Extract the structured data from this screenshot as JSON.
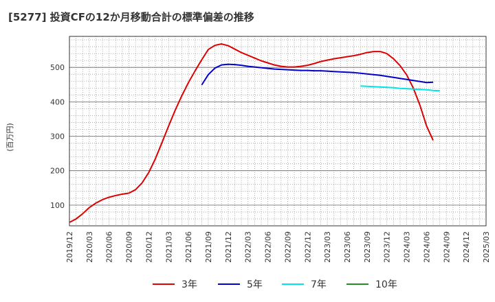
{
  "chart_data": {
    "type": "line",
    "title": "[5277]  投資CFの12か月移動合計の標準偏差の推移",
    "ylabel": "(百万円)",
    "xlabel": "",
    "ylim": [
      40,
      590
    ],
    "yticks": [
      100,
      200,
      300,
      400,
      500
    ],
    "xticks": [
      "2019/12",
      "2020/03",
      "2020/06",
      "2020/09",
      "2020/12",
      "2021/03",
      "2021/06",
      "2021/09",
      "2021/12",
      "2022/03",
      "2022/06",
      "2022/09",
      "2022/12",
      "2023/03",
      "2023/06",
      "2023/09",
      "2023/12",
      "2024/03",
      "2024/06",
      "2024/09",
      "2024/12",
      "2025/03"
    ],
    "grid": true,
    "legend_position": "bottom",
    "series": [
      {
        "name": "3年",
        "color": "#dd0000",
        "points": [
          [
            "2019/12",
            50
          ],
          [
            "2020/01",
            60
          ],
          [
            "2020/02",
            75
          ],
          [
            "2020/03",
            93
          ],
          [
            "2020/04",
            106
          ],
          [
            "2020/05",
            116
          ],
          [
            "2020/06",
            123
          ],
          [
            "2020/07",
            128
          ],
          [
            "2020/08",
            132
          ],
          [
            "2020/09",
            135
          ],
          [
            "2020/10",
            145
          ],
          [
            "2020/11",
            165
          ],
          [
            "2020/12",
            195
          ],
          [
            "2021/01",
            235
          ],
          [
            "2021/02",
            282
          ],
          [
            "2021/03",
            330
          ],
          [
            "2021/04",
            376
          ],
          [
            "2021/05",
            418
          ],
          [
            "2021/06",
            456
          ],
          [
            "2021/07",
            490
          ],
          [
            "2021/08",
            522
          ],
          [
            "2021/09",
            552
          ],
          [
            "2021/10",
            564
          ],
          [
            "2021/11",
            568
          ],
          [
            "2021/12",
            563
          ],
          [
            "2022/01",
            553
          ],
          [
            "2022/02",
            543
          ],
          [
            "2022/03",
            535
          ],
          [
            "2022/04",
            527
          ],
          [
            "2022/05",
            519
          ],
          [
            "2022/06",
            513
          ],
          [
            "2022/07",
            507
          ],
          [
            "2022/08",
            503
          ],
          [
            "2022/09",
            501
          ],
          [
            "2022/10",
            501
          ],
          [
            "2022/11",
            503
          ],
          [
            "2022/12",
            506
          ],
          [
            "2023/01",
            511
          ],
          [
            "2023/02",
            517
          ],
          [
            "2023/03",
            521
          ],
          [
            "2023/04",
            525
          ],
          [
            "2023/05",
            528
          ],
          [
            "2023/06",
            531
          ],
          [
            "2023/07",
            534
          ],
          [
            "2023/08",
            538
          ],
          [
            "2023/09",
            543
          ],
          [
            "2023/10",
            546
          ],
          [
            "2023/11",
            546
          ],
          [
            "2023/12",
            540
          ],
          [
            "2024/01",
            525
          ],
          [
            "2024/02",
            505
          ],
          [
            "2024/03",
            478
          ],
          [
            "2024/04",
            440
          ],
          [
            "2024/05",
            390
          ],
          [
            "2024/06",
            330
          ],
          [
            "2024/07",
            288
          ]
        ]
      },
      {
        "name": "5年",
        "color": "#0000cc",
        "points": [
          [
            "2021/08",
            449
          ],
          [
            "2021/09",
            479
          ],
          [
            "2021/10",
            498
          ],
          [
            "2021/11",
            507
          ],
          [
            "2021/12",
            509
          ],
          [
            "2022/01",
            508
          ],
          [
            "2022/02",
            506
          ],
          [
            "2022/03",
            503
          ],
          [
            "2022/04",
            501
          ],
          [
            "2022/05",
            499
          ],
          [
            "2022/06",
            497
          ],
          [
            "2022/07",
            495
          ],
          [
            "2022/08",
            494
          ],
          [
            "2022/09",
            493
          ],
          [
            "2022/10",
            492
          ],
          [
            "2022/11",
            491
          ],
          [
            "2022/12",
            491
          ],
          [
            "2023/01",
            490
          ],
          [
            "2023/02",
            490
          ],
          [
            "2023/03",
            489
          ],
          [
            "2023/04",
            488
          ],
          [
            "2023/05",
            487
          ],
          [
            "2023/06",
            486
          ],
          [
            "2023/07",
            485
          ],
          [
            "2023/08",
            483
          ],
          [
            "2023/09",
            481
          ],
          [
            "2023/10",
            479
          ],
          [
            "2023/11",
            477
          ],
          [
            "2023/12",
            474
          ],
          [
            "2024/01",
            471
          ],
          [
            "2024/02",
            468
          ],
          [
            "2024/03",
            465
          ],
          [
            "2024/04",
            462
          ],
          [
            "2024/05",
            459
          ],
          [
            "2024/06",
            456
          ],
          [
            "2024/07",
            457
          ]
        ]
      },
      {
        "name": "7年",
        "color": "#00e5e5",
        "points": [
          [
            "2023/08",
            446
          ],
          [
            "2023/09",
            445
          ],
          [
            "2023/10",
            444
          ],
          [
            "2023/11",
            443
          ],
          [
            "2023/12",
            442
          ],
          [
            "2024/01",
            441
          ],
          [
            "2024/02",
            439
          ],
          [
            "2024/03",
            438
          ],
          [
            "2024/04",
            437
          ],
          [
            "2024/05",
            436
          ],
          [
            "2024/06",
            435
          ],
          [
            "2024/07",
            433
          ],
          [
            "2024/08",
            432
          ]
        ]
      },
      {
        "name": "10年",
        "color": "#228b22",
        "points": []
      }
    ]
  }
}
